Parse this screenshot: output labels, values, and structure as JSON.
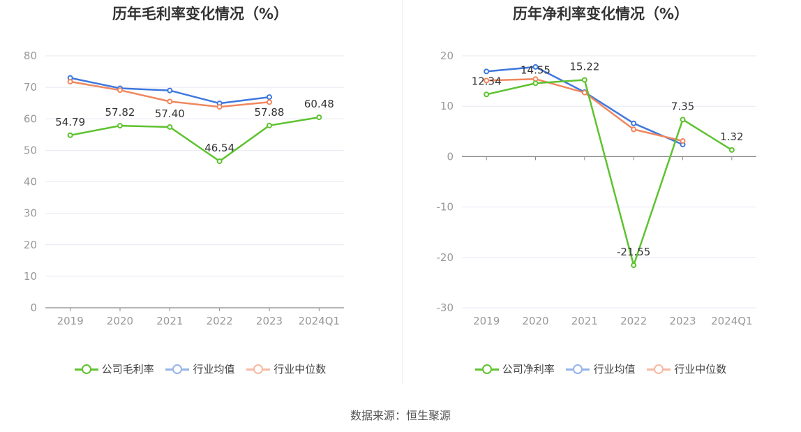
{
  "source_text": "数据来源：恒生聚源",
  "chart_data": [
    {
      "type": "line",
      "title": "历年毛利率变化情况（%）",
      "categories": [
        "2019",
        "2020",
        "2021",
        "2022",
        "2023",
        "2024Q1"
      ],
      "yticks": [
        0,
        10,
        20,
        30,
        40,
        50,
        60,
        70,
        80
      ],
      "ylim": [
        0,
        80
      ],
      "colors": {
        "company": "#5ec22f",
        "avg": "#3f78de",
        "median": "#f0875f"
      },
      "legend_colors": {
        "company": "#5ec22f",
        "avg": "#94b4ea",
        "median": "#f7b9a1"
      },
      "series": [
        {
          "name": "公司毛利率",
          "key": "company",
          "values": [
            54.79,
            57.82,
            57.4,
            46.54,
            57.88,
            60.48
          ],
          "labels": [
            "54.79",
            "57.82",
            "57.40",
            "46.54",
            "57.88",
            "60.48"
          ]
        },
        {
          "name": "行业均值",
          "key": "avg",
          "values": [
            73.0,
            69.7,
            69.0,
            64.9,
            66.9,
            null
          ]
        },
        {
          "name": "行业中位数",
          "key": "median",
          "values": [
            71.8,
            69.1,
            65.5,
            63.8,
            65.3,
            null
          ]
        }
      ]
    },
    {
      "type": "line",
      "title": "历年净利率变化情况（%）",
      "categories": [
        "2019",
        "2020",
        "2021",
        "2022",
        "2023",
        "2024Q1"
      ],
      "yticks": [
        -30,
        -20,
        -10,
        0,
        10,
        20
      ],
      "ylim": [
        -30,
        20
      ],
      "colors": {
        "company": "#5ec22f",
        "avg": "#3f78de",
        "median": "#f0875f"
      },
      "legend_colors": {
        "company": "#5ec22f",
        "avg": "#94b4ea",
        "median": "#f7b9a1"
      },
      "series": [
        {
          "name": "公司净利率",
          "key": "company",
          "values": [
            12.34,
            14.55,
            15.22,
            -21.55,
            7.35,
            1.32
          ],
          "labels": [
            "12.34",
            "14.55",
            "15.22",
            "-21.55",
            "7.35",
            "1.32"
          ]
        },
        {
          "name": "行业均值",
          "key": "avg",
          "values": [
            16.9,
            17.8,
            12.8,
            6.6,
            2.4,
            null
          ]
        },
        {
          "name": "行业中位数",
          "key": "median",
          "values": [
            15.1,
            15.4,
            12.7,
            5.4,
            3.1,
            null
          ]
        }
      ]
    }
  ]
}
